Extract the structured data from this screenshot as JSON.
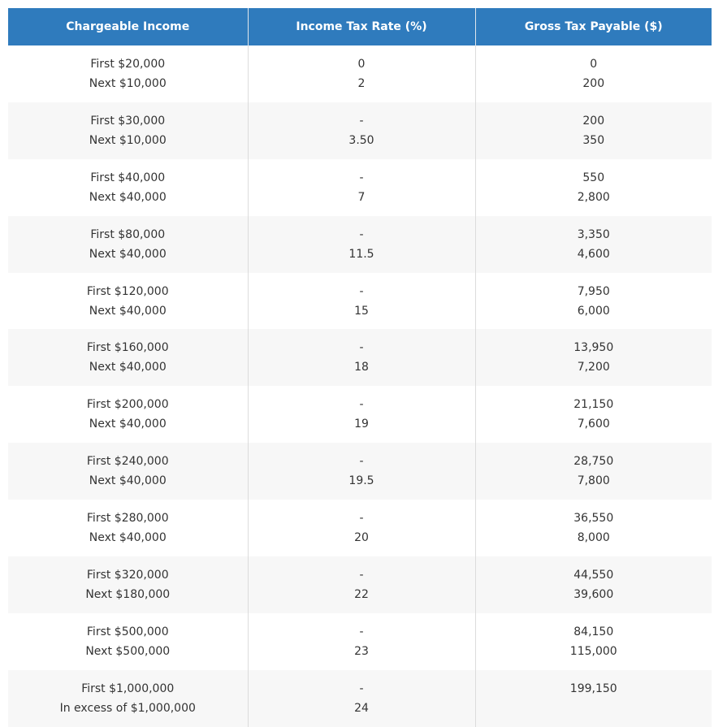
{
  "table": {
    "header": [
      "Chargeable Income",
      "Income Tax Rate (%)",
      "Gross Tax Payable ($)"
    ],
    "rows": [
      [
        [
          "First $20,000",
          "Next $10,000"
        ],
        [
          "0",
          "2"
        ],
        [
          "0",
          "200"
        ]
      ],
      [
        [
          "First $30,000",
          "Next $10,000"
        ],
        [
          "-",
          "3.50"
        ],
        [
          "200",
          "350"
        ]
      ],
      [
        [
          "First $40,000",
          "Next $40,000"
        ],
        [
          "-",
          "7"
        ],
        [
          "550",
          "2,800"
        ]
      ],
      [
        [
          "First $80,000",
          "Next $40,000"
        ],
        [
          "-",
          "11.5"
        ],
        [
          "3,350",
          "4,600"
        ]
      ],
      [
        [
          "First $120,000",
          "Next $40,000"
        ],
        [
          "-",
          "15"
        ],
        [
          "7,950",
          "6,000"
        ]
      ],
      [
        [
          "First $160,000",
          "Next $40,000"
        ],
        [
          "-",
          "18"
        ],
        [
          "13,950",
          "7,200"
        ]
      ],
      [
        [
          "First $200,000",
          "Next $40,000"
        ],
        [
          "-",
          "19"
        ],
        [
          "21,150",
          "7,600"
        ]
      ],
      [
        [
          "First $240,000",
          "Next $40,000"
        ],
        [
          "-",
          "19.5"
        ],
        [
          "28,750",
          "7,800"
        ]
      ],
      [
        [
          "First $280,000",
          "Next $40,000"
        ],
        [
          "-",
          "20"
        ],
        [
          "36,550",
          "8,000"
        ]
      ],
      [
        [
          "First $320,000",
          "Next $180,000"
        ],
        [
          "-",
          "22"
        ],
        [
          "44,550",
          "39,600"
        ]
      ],
      [
        [
          "First $500,000",
          "Next $500,000"
        ],
        [
          "-",
          "23"
        ],
        [
          "84,150",
          "115,000"
        ]
      ],
      [
        [
          "First $1,000,000",
          "In excess of $1,000,000"
        ],
        [
          "-",
          "24"
        ],
        [
          "199,150"
        ]
      ]
    ]
  }
}
